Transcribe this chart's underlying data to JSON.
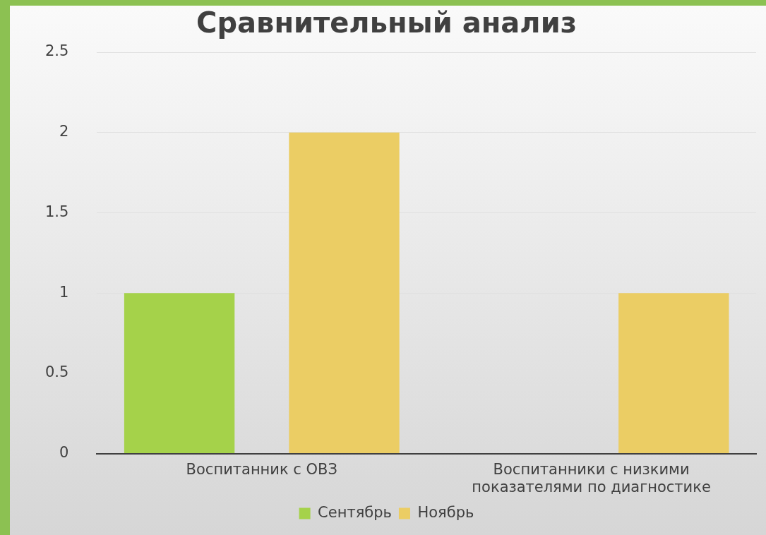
{
  "chart_data": {
    "type": "bar",
    "title": "Сравнительный анализ",
    "categories": [
      "Воспитанник с ОВЗ",
      "Воспитанники с низкими показателями по диагностике"
    ],
    "series": [
      {
        "name": "Сентябрь",
        "color": "#a5d24a",
        "values": [
          1,
          0
        ]
      },
      {
        "name": "Ноябрь",
        "color": "#ebcd64",
        "values": [
          2,
          1
        ]
      }
    ],
    "ylim": [
      0,
      2.5
    ],
    "yticks": [
      0,
      0.5,
      1,
      1.5,
      2,
      2.5
    ],
    "grid": "y",
    "legend": "bottom"
  }
}
